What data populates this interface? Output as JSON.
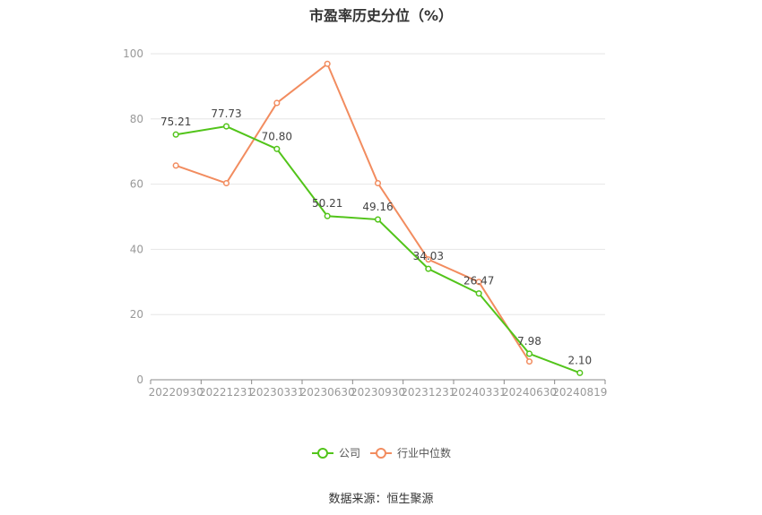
{
  "title": "市盈率历史分位（%）",
  "source": "数据来源：恒生聚源",
  "chart_data": {
    "type": "line",
    "categories": [
      "20220930",
      "20221231",
      "20230331",
      "20230630",
      "20230930",
      "20231231",
      "20240331",
      "20240630",
      "20240819"
    ],
    "series": [
      {
        "name": "公司",
        "color": "#52c41a",
        "values": [
          75.21,
          77.73,
          70.8,
          50.21,
          49.16,
          34.03,
          26.47,
          7.98,
          2.1
        ],
        "labels": [
          "75.21",
          "77.73",
          "70.80",
          "50.21",
          "49.16",
          "34.03",
          "26.47",
          "7.98",
          "2.10"
        ]
      },
      {
        "name": "行业中位数",
        "color": "#f28c5f",
        "values": [
          65.7,
          60.3,
          84.9,
          96.9,
          60.3,
          36.9,
          30.0,
          5.6,
          null
        ]
      }
    ],
    "ylim": [
      0,
      100
    ],
    "yticks": [
      0,
      20,
      40,
      60,
      80,
      100
    ],
    "grid": true,
    "legend_position": "bottom-center"
  }
}
